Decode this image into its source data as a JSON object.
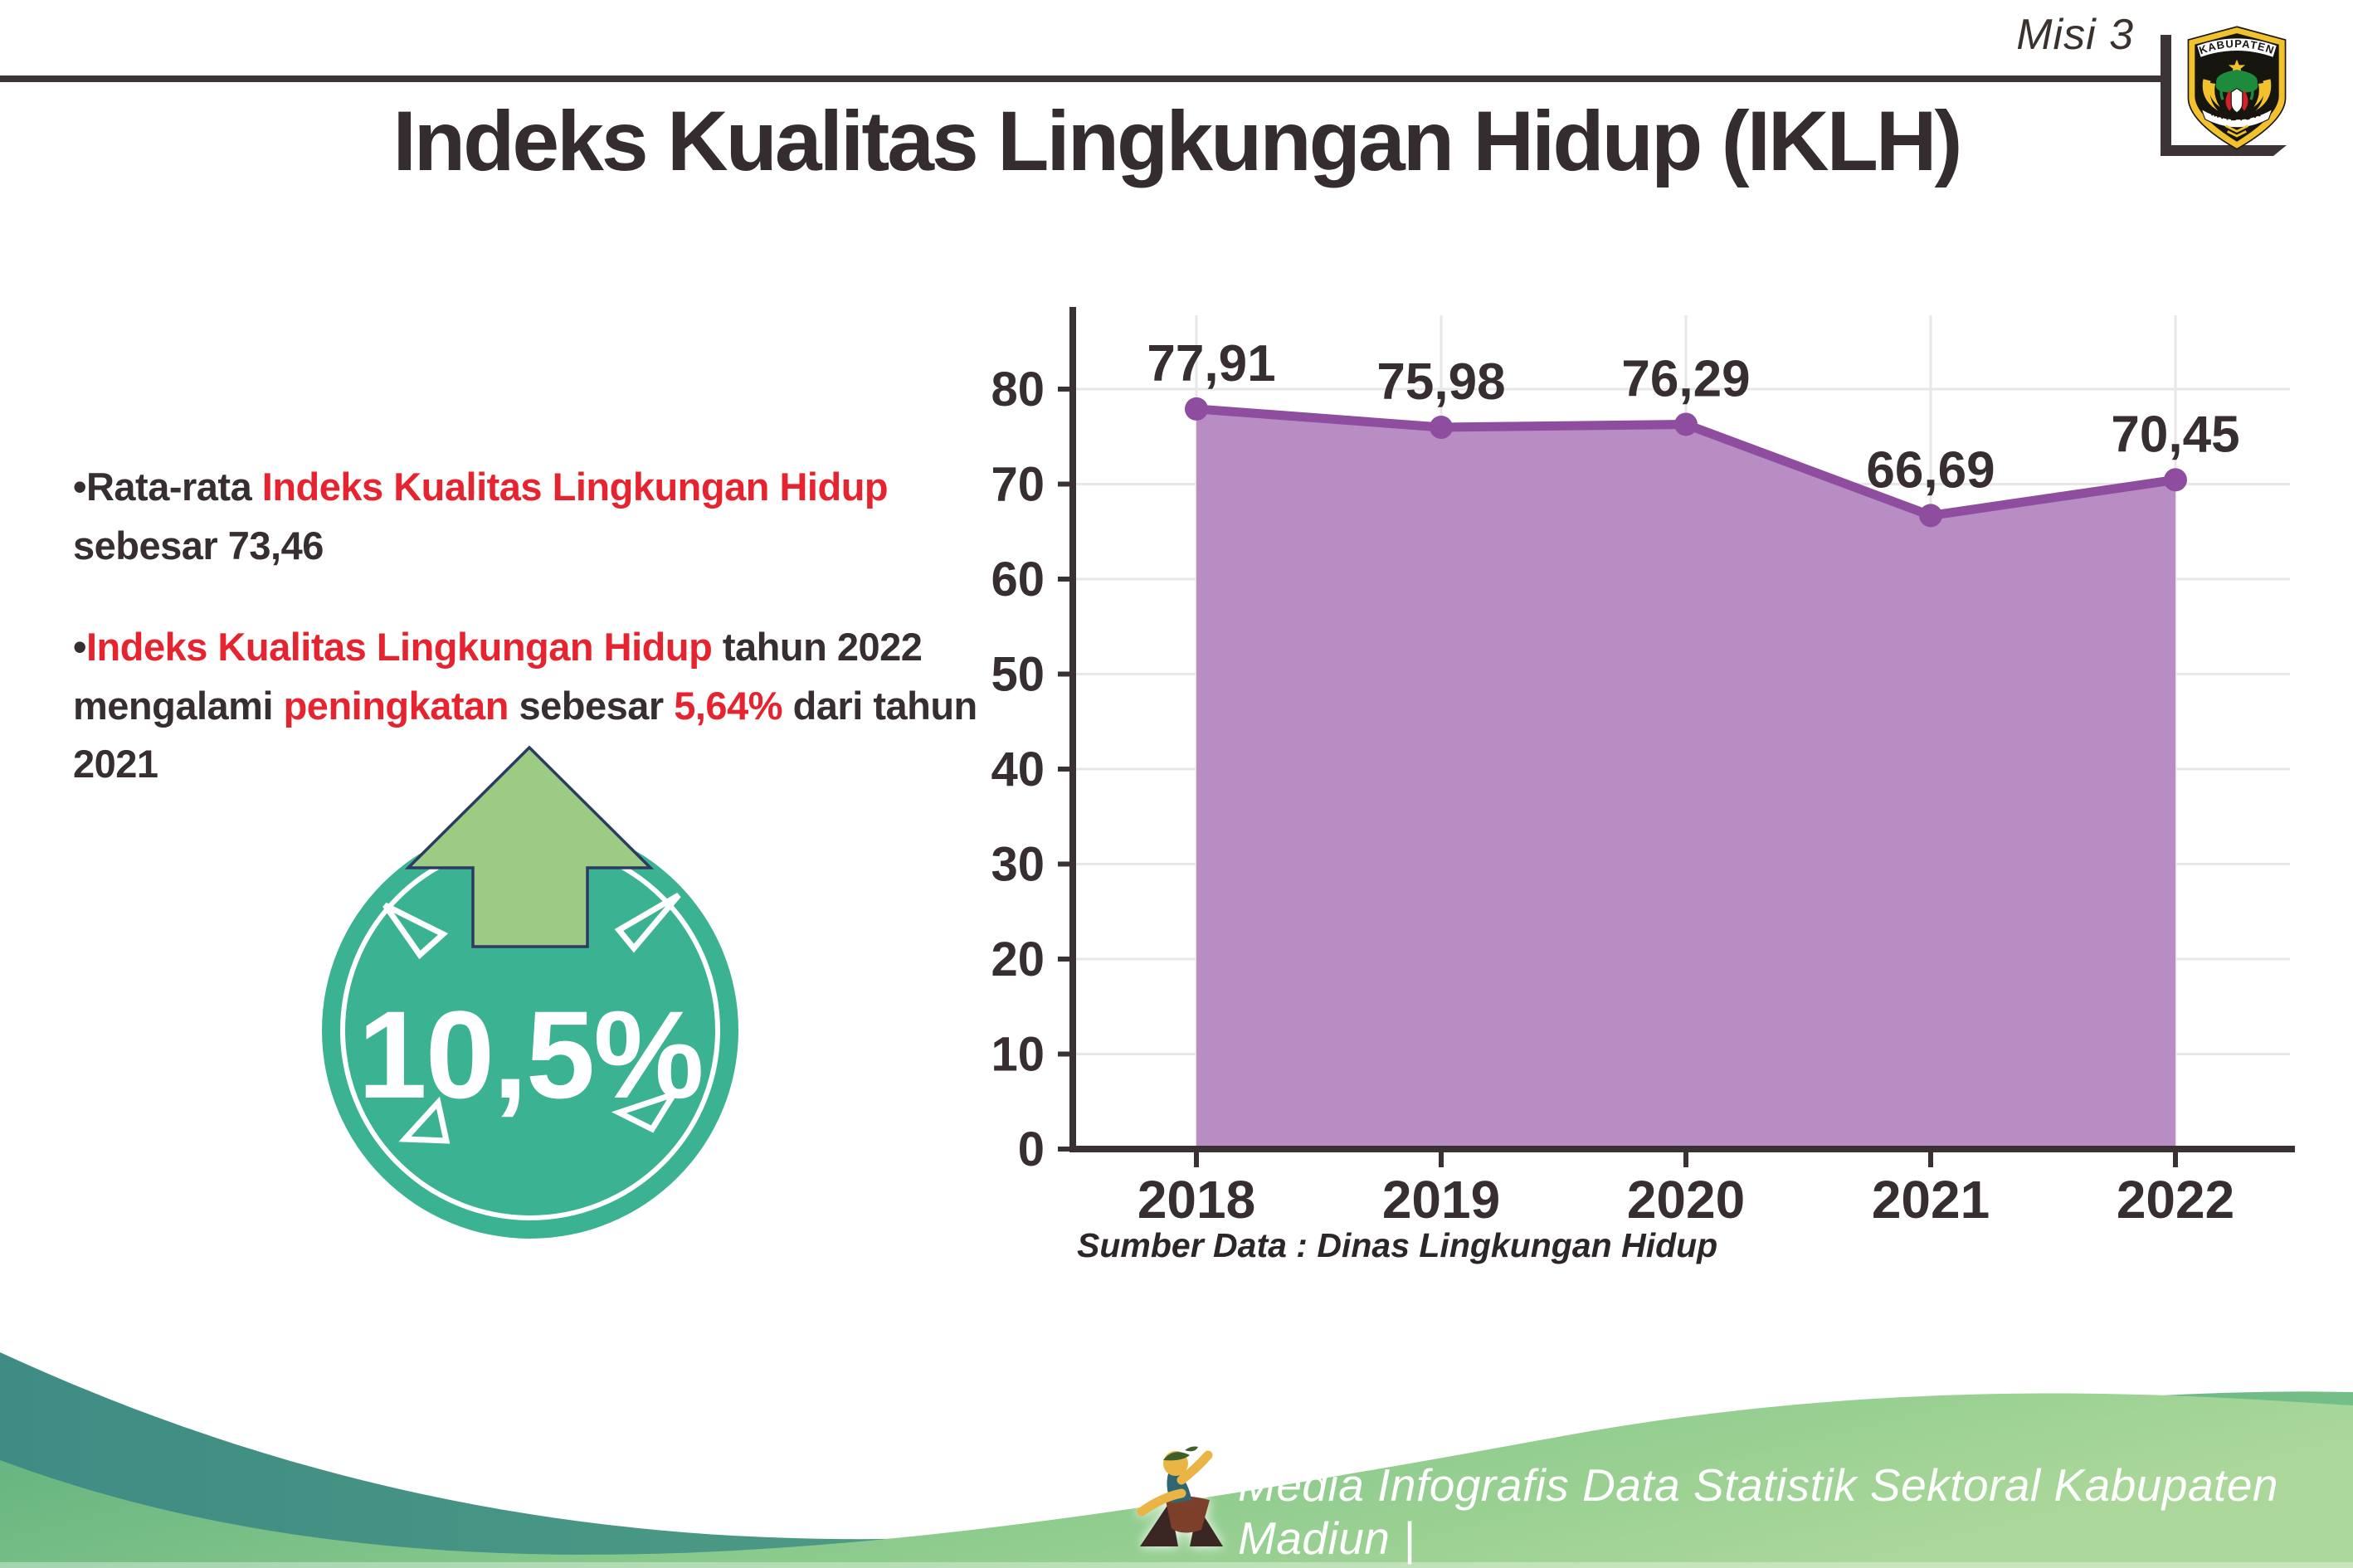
{
  "header": {
    "misi_label": "Misi 3",
    "logo_top_text": "KABUPATEN",
    "logo_bottom_text": "MADIUN"
  },
  "title": "Indeks Kualitas Lingkungan Hidup (IKLH)",
  "bullets": {
    "b1": [
      {
        "t": "Rata-rata ",
        "c": "dark"
      },
      {
        "t": "Indeks Kualitas Lingkungan Hidup",
        "c": "red"
      },
      {
        "t": " sebesar 73,46",
        "c": "dark"
      }
    ],
    "b2": [
      {
        "t": "Indeks Kualitas Lingkungan Hidup",
        "c": "red"
      },
      {
        "t": " tahun 2022 mengalami ",
        "c": "dark"
      },
      {
        "t": "peningkatan",
        "c": "red"
      },
      {
        "t": " sebesar ",
        "c": "dark"
      },
      {
        "t": "5,64%",
        "c": "red"
      },
      {
        "t": " dari tahun 2021",
        "c": "dark"
      }
    ]
  },
  "badge": {
    "value": "10,5%",
    "circle_color": "#3bb292",
    "arrow_color": "#9ccb83"
  },
  "chart_data": {
    "type": "area",
    "title": "",
    "categories": [
      "2018",
      "2019",
      "2020",
      "2021",
      "2022"
    ],
    "values": [
      77.91,
      75.98,
      76.29,
      66.69,
      70.45
    ],
    "value_labels": [
      "77,91",
      "75,98",
      "76,29",
      "66,69",
      "70,45"
    ],
    "ylim": [
      0,
      88
    ],
    "yticks": [
      0,
      10,
      20,
      30,
      40,
      50,
      60,
      70,
      80
    ],
    "grid": "on",
    "legend": "none",
    "source": "Sumber Data : Dinas Lingkungan Hidup",
    "colors": {
      "line": "#8e4d9e",
      "fill": "#b88dc4",
      "axis": "#3a3134",
      "grid": "#e8e6e7",
      "label": "#362e31"
    }
  },
  "footer": {
    "text": "Media Infografis Data Statistik Sektoral Kabupaten Madiun |"
  }
}
